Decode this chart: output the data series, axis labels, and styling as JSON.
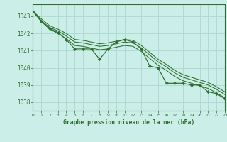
{
  "title": "Graphe pression niveau de la mer (hPa)",
  "bg_color": "#cceee8",
  "grid_color": "#aad8d2",
  "line_color": "#2d6e2d",
  "xlim": [
    0,
    23
  ],
  "ylim": [
    1037.5,
    1043.7
  ],
  "yticks": [
    1038,
    1039,
    1040,
    1041,
    1042,
    1043
  ],
  "xticks": [
    0,
    1,
    2,
    3,
    4,
    5,
    6,
    7,
    8,
    9,
    10,
    11,
    12,
    13,
    14,
    15,
    16,
    17,
    18,
    19,
    20,
    21,
    22,
    23
  ],
  "series_main": [
    1043.3,
    1042.7,
    1042.3,
    1042.05,
    1041.65,
    1041.1,
    1041.1,
    1041.1,
    1040.5,
    1041.1,
    1041.5,
    1041.65,
    1041.5,
    1041.1,
    1040.1,
    1040.0,
    1039.1,
    1039.1,
    1039.1,
    1039.0,
    1039.0,
    1038.6,
    1038.5,
    1038.2
  ],
  "series_smooth": [
    [
      1043.3,
      1042.75,
      1042.35,
      1042.15,
      1041.85,
      1041.5,
      1041.45,
      1041.35,
      1041.25,
      1041.3,
      1041.4,
      1041.5,
      1041.45,
      1041.15,
      1040.75,
      1040.35,
      1040.05,
      1039.7,
      1039.45,
      1039.3,
      1039.15,
      1039.0,
      1038.75,
      1038.45
    ],
    [
      1043.3,
      1042.7,
      1042.25,
      1042.0,
      1041.7,
      1041.3,
      1041.25,
      1041.15,
      1041.05,
      1041.1,
      1041.2,
      1041.3,
      1041.25,
      1040.95,
      1040.55,
      1040.15,
      1039.85,
      1039.5,
      1039.25,
      1039.1,
      1038.95,
      1038.8,
      1038.55,
      1038.25
    ],
    [
      1043.3,
      1042.85,
      1042.45,
      1042.25,
      1042.0,
      1041.65,
      1041.6,
      1041.5,
      1041.4,
      1041.45,
      1041.55,
      1041.65,
      1041.6,
      1041.3,
      1040.9,
      1040.5,
      1040.2,
      1039.85,
      1039.6,
      1039.45,
      1039.3,
      1039.15,
      1038.9,
      1038.6
    ]
  ]
}
